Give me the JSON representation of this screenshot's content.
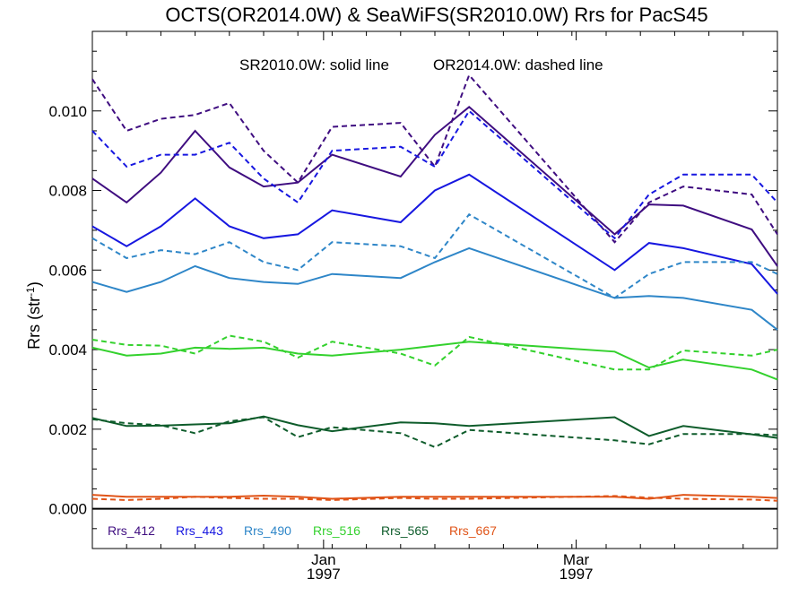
{
  "chart_data": {
    "type": "line",
    "title": "OCTS(OR2014.0W) & SeaWiFS(SR2010.0W)  Rrs for PacS45",
    "annotation_solid": "SR2010.0W: solid line",
    "annotation_dashed": "OR2014.0W: dashed line",
    "xlabel": "",
    "ylabel_main": "Rrs (str",
    "ylabel_sup": "-1",
    "ylabel_close": ")",
    "xlim": [
      "1996-11-08",
      "1997-04-17"
    ],
    "ylim": [
      -0.001,
      0.012
    ],
    "yticks": [
      0.0,
      0.002,
      0.004,
      0.006,
      0.008,
      0.01
    ],
    "ytick_labels": [
      "0.000",
      "0.002",
      "0.004",
      "0.006",
      "0.008",
      "0.010"
    ],
    "xticks": [
      {
        "date": "1997-01-01",
        "line1": "Jan",
        "line2": "1997"
      },
      {
        "date": "1997-03-01",
        "line1": "Mar",
        "line2": "1997"
      }
    ],
    "x": [
      "1996-11-08",
      "1996-11-16",
      "1996-11-24",
      "1996-12-02",
      "1996-12-10",
      "1996-12-18",
      "1996-12-26",
      "1997-01-03",
      "1997-01-19",
      "1997-01-27",
      "1997-02-04",
      "1997-03-10",
      "1997-03-18",
      "1997-03-26",
      "1997-04-11",
      "1997-04-17"
    ],
    "series": [
      {
        "name": "Rrs_412",
        "color": "#3f0d80",
        "solid": [
          0.0083,
          0.0077,
          0.00845,
          0.0095,
          0.00858,
          0.0081,
          0.0082,
          0.0089,
          0.00835,
          0.0094,
          0.0101,
          0.0069,
          0.00765,
          0.00762,
          0.00702,
          0.0061
        ],
        "dashed": [
          0.0108,
          0.0095,
          0.0098,
          0.0099,
          0.0102,
          0.009,
          0.0082,
          0.0096,
          0.0097,
          0.0086,
          0.0109,
          0.0067,
          0.0077,
          0.0081,
          0.0079,
          0.0069
        ]
      },
      {
        "name": "Rrs_443",
        "color": "#1717e0",
        "solid": [
          0.0071,
          0.0066,
          0.0071,
          0.0078,
          0.0071,
          0.0068,
          0.0069,
          0.0075,
          0.0072,
          0.008,
          0.0084,
          0.006,
          0.00668,
          0.00655,
          0.00615,
          0.0054
        ],
        "dashed": [
          0.0095,
          0.0086,
          0.0089,
          0.0089,
          0.0092,
          0.0083,
          0.0077,
          0.009,
          0.0091,
          0.0086,
          0.01,
          0.0068,
          0.0079,
          0.0084,
          0.0084,
          0.0077
        ]
      },
      {
        "name": "Rrs_490",
        "color": "#2e86c8",
        "solid": [
          0.0057,
          0.00545,
          0.0057,
          0.0061,
          0.0058,
          0.0057,
          0.00565,
          0.0059,
          0.0058,
          0.0062,
          0.00655,
          0.0053,
          0.00535,
          0.0053,
          0.005,
          0.0045
        ],
        "dashed": [
          0.0068,
          0.0063,
          0.0065,
          0.0064,
          0.0067,
          0.0062,
          0.006,
          0.0067,
          0.0066,
          0.0063,
          0.0074,
          0.0053,
          0.0059,
          0.0062,
          0.0062,
          0.0059
        ]
      },
      {
        "name": "Rrs_516",
        "color": "#33d12d",
        "solid": [
          0.00405,
          0.00385,
          0.0039,
          0.00405,
          0.00402,
          0.00405,
          0.0039,
          0.00385,
          0.004,
          0.0041,
          0.0042,
          0.00395,
          0.00355,
          0.00375,
          0.0035,
          0.00325
        ],
        "dashed": [
          0.00425,
          0.00412,
          0.0041,
          0.0039,
          0.00435,
          0.0042,
          0.0038,
          0.0042,
          0.0039,
          0.0036,
          0.00432,
          0.0035,
          0.0035,
          0.00398,
          0.00385,
          0.004
        ]
      },
      {
        "name": "Rrs_565",
        "color": "#0e5c2b",
        "solid": [
          0.00228,
          0.00208,
          0.00209,
          0.00212,
          0.00215,
          0.00232,
          0.0021,
          0.00195,
          0.00217,
          0.00215,
          0.00208,
          0.0023,
          0.00183,
          0.00208,
          0.00187,
          0.00178
        ],
        "dashed": [
          0.00225,
          0.00215,
          0.0021,
          0.0019,
          0.0022,
          0.0023,
          0.0018,
          0.00205,
          0.0019,
          0.00155,
          0.00198,
          0.00172,
          0.00162,
          0.00188,
          0.00188,
          0.00185
        ]
      },
      {
        "name": "Rrs_667",
        "color": "#e05418",
        "solid": [
          0.00035,
          0.0003,
          0.0003,
          0.0003,
          0.0003,
          0.00033,
          0.0003,
          0.00025,
          0.0003,
          0.0003,
          0.0003,
          0.0003,
          0.00025,
          0.00035,
          0.0003,
          0.00027
        ],
        "dashed": [
          0.00025,
          0.00022,
          0.00025,
          0.0003,
          0.00027,
          0.00025,
          0.00025,
          0.00022,
          0.00027,
          0.00025,
          0.00025,
          0.00032,
          0.00028,
          0.00025,
          0.00023,
          0.0002
        ]
      }
    ],
    "zero_line": true,
    "grid": false,
    "legend_placement": "bottom-left inside plot"
  }
}
